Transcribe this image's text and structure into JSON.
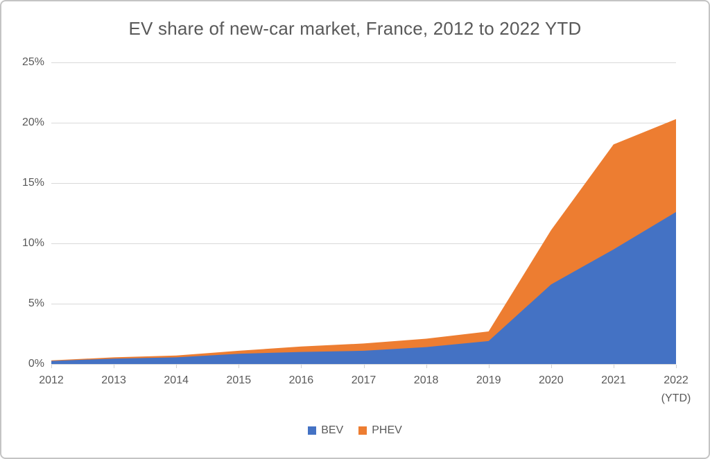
{
  "title": "EV share of new-car market, France, 2012 to 2022 YTD",
  "colors": {
    "bev": "#4472C4",
    "phev": "#ED7D31",
    "grid": "#D9D9D9",
    "text": "#595959",
    "frame_border": "#C4C4C4",
    "background": "#FFFFFF"
  },
  "legend": [
    {
      "label": "BEV",
      "color": "#4472C4"
    },
    {
      "label": "PHEV",
      "color": "#ED7D31"
    }
  ],
  "y_axis": {
    "ticks": [
      "0%",
      "5%",
      "10%",
      "15%",
      "20%",
      "25%"
    ]
  },
  "x_axis": {
    "labels": [
      "2012",
      "2013",
      "2014",
      "2015",
      "2016",
      "2017",
      "2018",
      "2019",
      "2020",
      "2021",
      "2022\n(YTD)"
    ]
  },
  "chart_data": {
    "type": "area",
    "stacked": true,
    "title": "EV share of new-car market, France, 2012 to 2022 YTD",
    "categories": [
      "2012",
      "2013",
      "2014",
      "2015",
      "2016",
      "2017",
      "2018",
      "2019",
      "2020",
      "2021",
      "2022 (YTD)"
    ],
    "series": [
      {
        "name": "BEV",
        "color": "#4472C4",
        "values": [
          0.25,
          0.45,
          0.55,
          0.85,
          1.0,
          1.1,
          1.4,
          1.9,
          6.6,
          9.5,
          12.6
        ]
      },
      {
        "name": "PHEV",
        "color": "#ED7D31",
        "values": [
          0.05,
          0.1,
          0.15,
          0.25,
          0.45,
          0.6,
          0.7,
          0.8,
          4.5,
          8.7,
          7.7
        ]
      }
    ],
    "totals": [
      0.3,
      0.55,
      0.7,
      1.1,
      1.45,
      1.7,
      2.1,
      2.7,
      11.1,
      18.2,
      20.3
    ],
    "unit": "%",
    "ylim": [
      0,
      25
    ],
    "y_tick_step": 5,
    "grid": true,
    "legend_position": "bottom"
  }
}
